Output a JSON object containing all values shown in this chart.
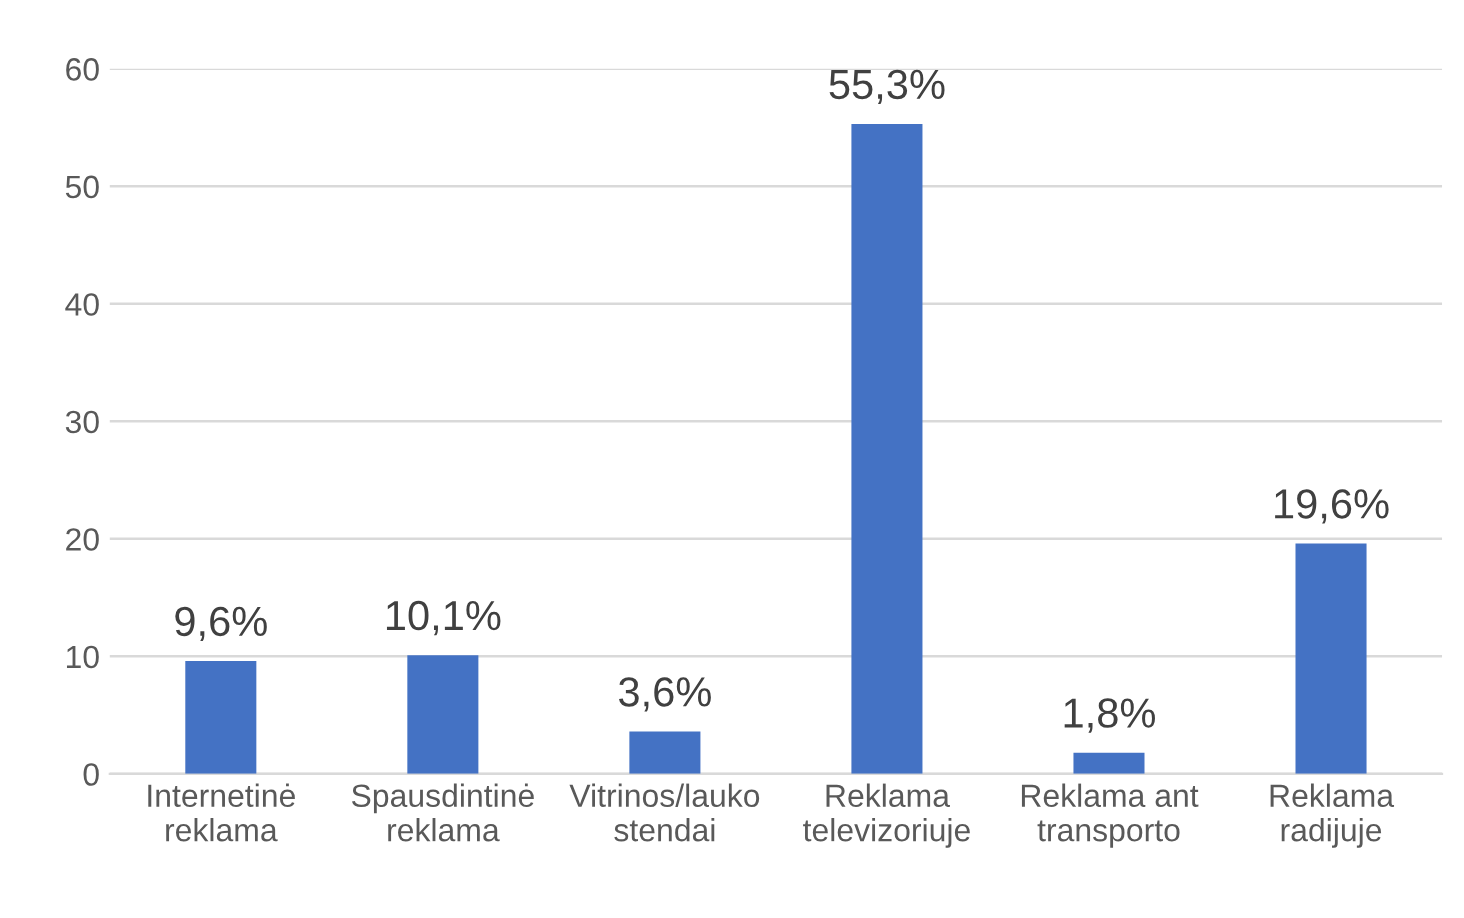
{
  "chart_data": {
    "type": "bar",
    "categories": [
      "Internetinė\nreklama",
      "Spausdintinė\nreklama",
      "Vitrinos/lauko\nstendai",
      "Reklama\ntelevizoriuje",
      "Reklama ant\ntransporto",
      "Reklama\nradijuje"
    ],
    "values": [
      9.6,
      10.1,
      3.6,
      55.3,
      1.8,
      19.6
    ],
    "value_labels": [
      "9,6%",
      "10,1%",
      "3,6%",
      "55,3%",
      "1,8%",
      "19,6%"
    ],
    "color": "#4472c4",
    "ylim": [
      0,
      60
    ],
    "yticks": [
      0,
      10,
      20,
      30,
      40,
      50,
      60
    ],
    "grid": "y"
  }
}
